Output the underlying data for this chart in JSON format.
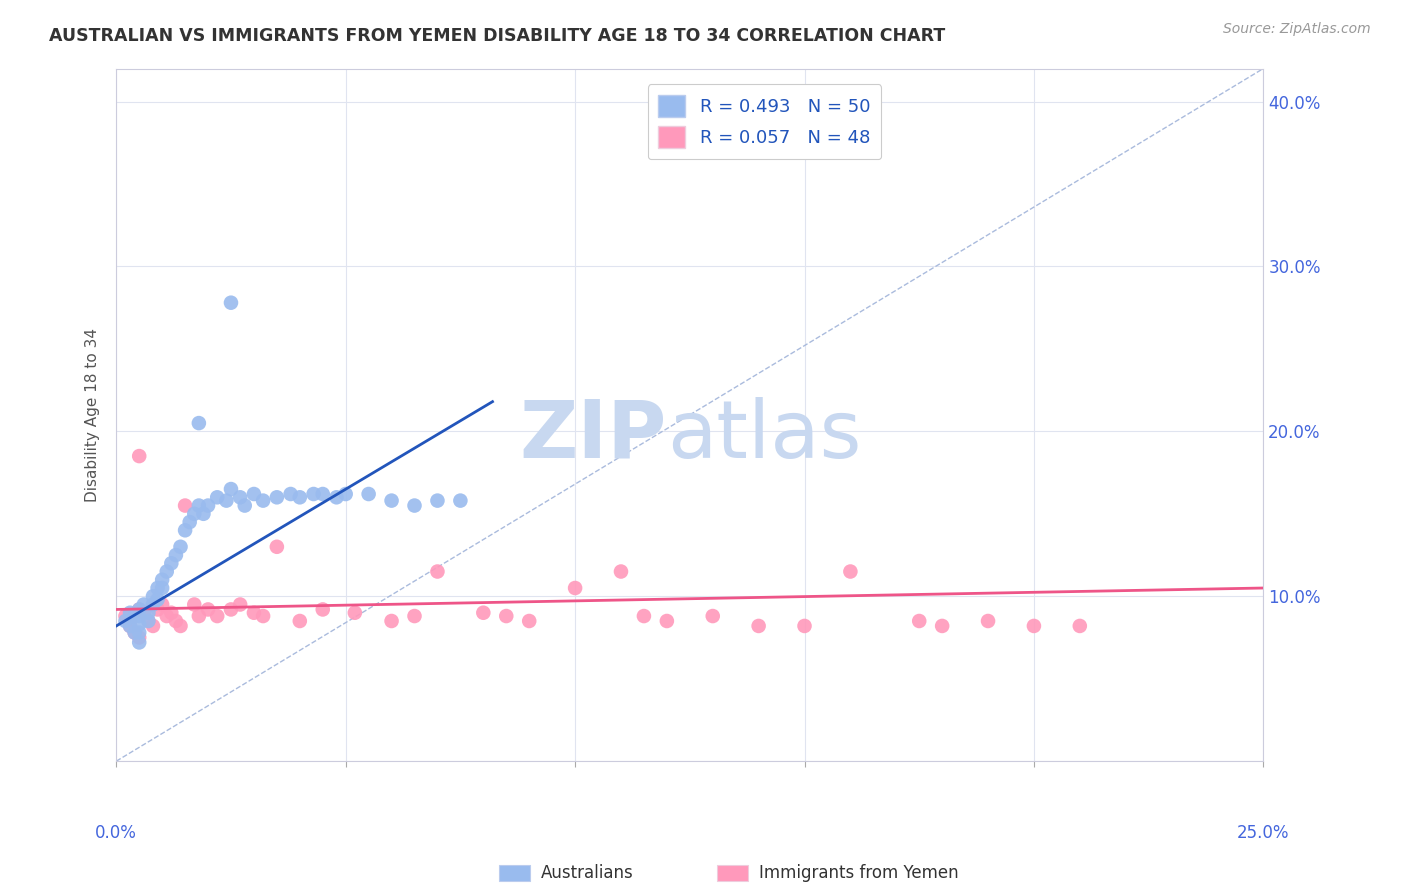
{
  "title": "AUSTRALIAN VS IMMIGRANTS FROM YEMEN DISABILITY AGE 18 TO 34 CORRELATION CHART",
  "source": "Source: ZipAtlas.com",
  "ylabel": "Disability Age 18 to 34",
  "xmin": 0.0,
  "xmax": 0.25,
  "ymin": 0.0,
  "ymax": 0.42,
  "yticks": [
    0.0,
    0.1,
    0.2,
    0.3,
    0.4
  ],
  "ytick_labels": [
    "",
    "10.0%",
    "20.0%",
    "30.0%",
    "40.0%"
  ],
  "xtick_positions": [
    0.0,
    0.05,
    0.1,
    0.15,
    0.2,
    0.25
  ],
  "watermark_zip": "ZIP",
  "watermark_atlas": "atlas",
  "legend_blue_r": "R = 0.493",
  "legend_blue_n": "N = 50",
  "legend_pink_r": "R = 0.057",
  "legend_pink_n": "N = 48",
  "blue_color": "#99BBEE",
  "pink_color": "#FF99BB",
  "blue_line_color": "#2255BB",
  "pink_line_color": "#EE5588",
  "diagonal_color": "#AABBDD",
  "blue_scatter_x": [
    0.002,
    0.003,
    0.003,
    0.004,
    0.004,
    0.005,
    0.005,
    0.005,
    0.005,
    0.005,
    0.006,
    0.007,
    0.007,
    0.008,
    0.008,
    0.009,
    0.009,
    0.01,
    0.01,
    0.011,
    0.012,
    0.013,
    0.014,
    0.015,
    0.016,
    0.017,
    0.018,
    0.019,
    0.02,
    0.022,
    0.024,
    0.025,
    0.027,
    0.028,
    0.03,
    0.032,
    0.035,
    0.038,
    0.04,
    0.043,
    0.045,
    0.048,
    0.05,
    0.055,
    0.06,
    0.065,
    0.07,
    0.075,
    0.018,
    0.025
  ],
  "blue_scatter_y": [
    0.085,
    0.09,
    0.082,
    0.088,
    0.078,
    0.092,
    0.088,
    0.083,
    0.078,
    0.072,
    0.095,
    0.09,
    0.085,
    0.1,
    0.095,
    0.105,
    0.098,
    0.11,
    0.105,
    0.115,
    0.12,
    0.125,
    0.13,
    0.14,
    0.145,
    0.15,
    0.155,
    0.15,
    0.155,
    0.16,
    0.158,
    0.165,
    0.16,
    0.155,
    0.162,
    0.158,
    0.16,
    0.162,
    0.16,
    0.162,
    0.162,
    0.16,
    0.162,
    0.162,
    0.158,
    0.155,
    0.158,
    0.158,
    0.205,
    0.278
  ],
  "pink_scatter_x": [
    0.002,
    0.003,
    0.003,
    0.004,
    0.005,
    0.005,
    0.006,
    0.007,
    0.008,
    0.009,
    0.01,
    0.011,
    0.012,
    0.013,
    0.014,
    0.015,
    0.017,
    0.018,
    0.02,
    0.022,
    0.025,
    0.027,
    0.03,
    0.032,
    0.035,
    0.04,
    0.045,
    0.052,
    0.06,
    0.065,
    0.07,
    0.08,
    0.085,
    0.09,
    0.1,
    0.11,
    0.115,
    0.12,
    0.13,
    0.14,
    0.15,
    0.16,
    0.175,
    0.18,
    0.19,
    0.2,
    0.21,
    0.005
  ],
  "pink_scatter_y": [
    0.088,
    0.085,
    0.082,
    0.078,
    0.092,
    0.075,
    0.09,
    0.085,
    0.082,
    0.092,
    0.095,
    0.088,
    0.09,
    0.085,
    0.082,
    0.155,
    0.095,
    0.088,
    0.092,
    0.088,
    0.092,
    0.095,
    0.09,
    0.088,
    0.13,
    0.085,
    0.092,
    0.09,
    0.085,
    0.088,
    0.115,
    0.09,
    0.088,
    0.085,
    0.105,
    0.115,
    0.088,
    0.085,
    0.088,
    0.082,
    0.082,
    0.115,
    0.085,
    0.082,
    0.085,
    0.082,
    0.082,
    0.185
  ],
  "blue_line_x": [
    0.0,
    0.082
  ],
  "blue_line_y": [
    0.082,
    0.218
  ],
  "pink_line_x": [
    0.0,
    0.25
  ],
  "pink_line_y": [
    0.092,
    0.105
  ],
  "diag_line_x": [
    0.0,
    0.25
  ],
  "diag_line_y": [
    0.0,
    0.42
  ],
  "background_color": "#FFFFFF",
  "grid_color": "#E0E4F0",
  "title_color": "#333333",
  "right_axis_color": "#4466DD",
  "watermark_color_zip": "#C8D8F0",
  "watermark_color_atlas": "#C8D8F0"
}
